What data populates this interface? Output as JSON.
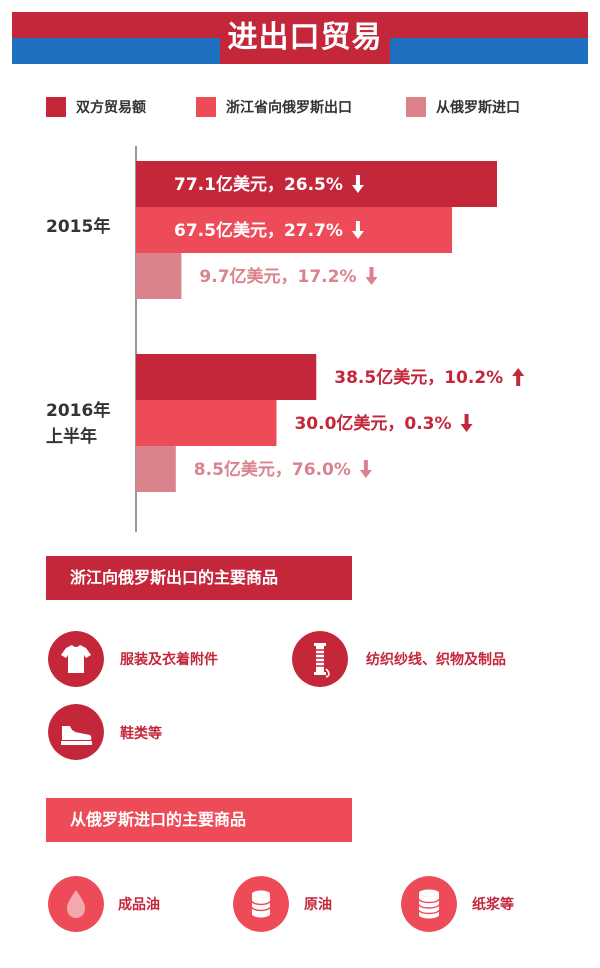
{
  "banner": {
    "title": "进出口贸易"
  },
  "chart_data": {
    "type": "bar",
    "orientation": "horizontal",
    "categories": [
      "2015年",
      "2016年\n上半年"
    ],
    "series": [
      {
        "name": "双方贸易额",
        "color": "#c4263a",
        "values": [
          77.1,
          38.5
        ]
      },
      {
        "name": "浙江省向俄罗斯出口",
        "color": "#ee4b58",
        "values": [
          67.5,
          30.0
        ]
      },
      {
        "name": "从俄罗斯进口",
        "color": "#db838c",
        "values": [
          9.7,
          8.5
        ]
      }
    ],
    "unit": "亿美元",
    "data_labels": [
      [
        "77.1亿美元，26.5%",
        "67.5亿美元，27.7%",
        "9.7亿美元，17.2%"
      ],
      [
        "38.5亿美元，10.2%",
        "30.0亿美元，0.3%",
        "8.5亿美元，76.0%"
      ]
    ],
    "change_direction": [
      [
        "down",
        "down",
        "down"
      ],
      [
        "up",
        "down",
        "down"
      ]
    ],
    "xlim": [
      0,
      85
    ],
    "legend": "top"
  },
  "export_section": {
    "title": "浙江向俄罗斯出口的主要商品",
    "color": "#c4263a",
    "items": [
      {
        "icon": "tshirt-icon",
        "label": "服装及衣着附件"
      },
      {
        "icon": "yarn-spool-icon",
        "label": "纺织纱线、织物及制品"
      },
      {
        "icon": "shoe-icon",
        "label": "鞋类等"
      }
    ]
  },
  "import_section": {
    "title": "从俄罗斯进口的主要商品",
    "color": "#ee4b58",
    "items": [
      {
        "icon": "oil-drop-icon",
        "label": "成品油"
      },
      {
        "icon": "barrel-icon",
        "label": "原油"
      },
      {
        "icon": "pulp-stack-icon",
        "label": "纸浆等"
      }
    ]
  }
}
